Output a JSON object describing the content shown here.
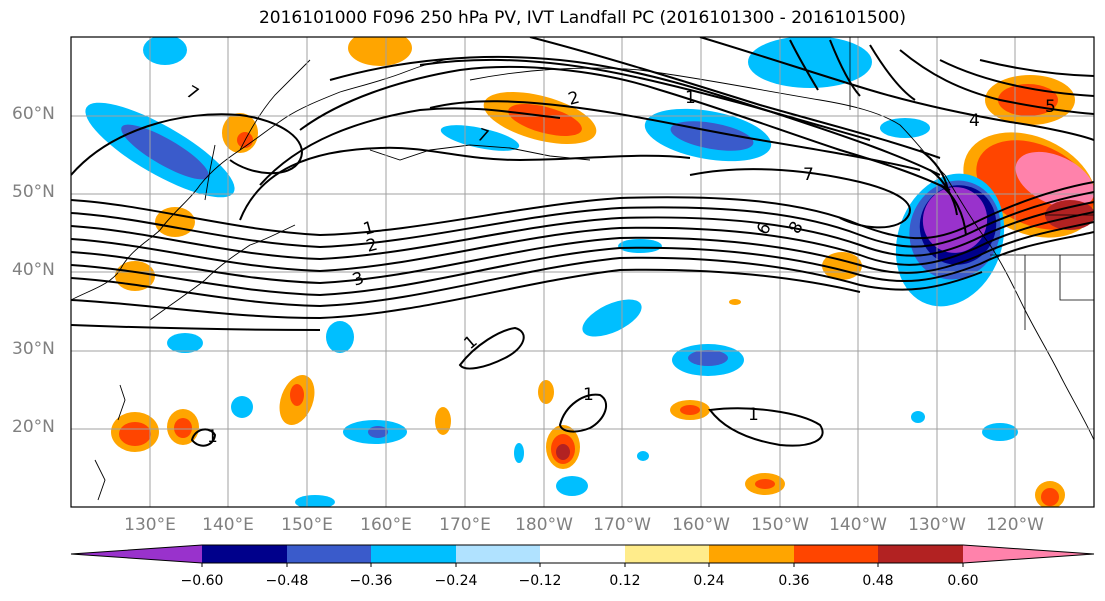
{
  "title": "2016101000 F096 250 hPa PV, IVT Landfall PC (2016101300 - 2016101500)",
  "lat_labels": [
    "60°N",
    "50°N",
    "40°N",
    "30°N",
    "20°N"
  ],
  "lon_labels": [
    "130°E",
    "140°E",
    "150°E",
    "160°E",
    "170°E",
    "180°W",
    "170°W",
    "160°W",
    "150°W",
    "140°W",
    "130°W",
    "120°W"
  ],
  "contour_labels": [
    "7",
    "2",
    "1",
    "7",
    "6",
    "8",
    "7",
    "4",
    "5",
    "1",
    "2",
    "3",
    "1",
    "1",
    "1",
    "1"
  ],
  "colorbar": {
    "ticks": [
      "−0.60",
      "−0.48",
      "−0.36",
      "−0.24",
      "−0.12",
      "0.12",
      "0.24",
      "0.36",
      "0.48",
      "0.60"
    ],
    "colors": [
      "#9932CC",
      "#00008B",
      "#3A5BCB",
      "#00BFFF",
      "#B0E2FF",
      "#FFFFFF",
      "#FFEC8B",
      "#FFA500",
      "#FF4500",
      "#B22222",
      "#FF82AB"
    ]
  }
}
